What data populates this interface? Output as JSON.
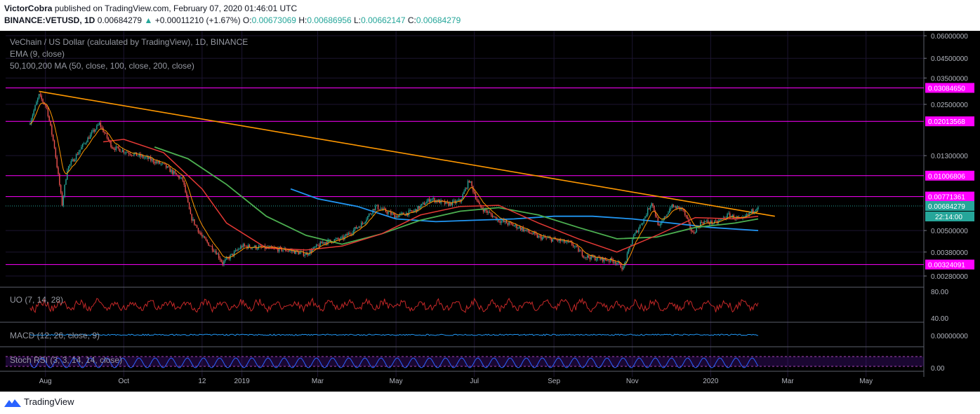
{
  "header": {
    "publisher": "VictorCobra",
    "published_text": "published on TradingView.com, February 07, 2020 01:46:01 UTC",
    "symbol": "BINANCE:VETUSD, 1D",
    "last": "0.00684279",
    "change": "+0.00011210 (+1.67%)",
    "o_label": "O:",
    "o": "0.00673069",
    "h_label": "H:",
    "h": "0.00686956",
    "l_label": "L:",
    "l": "0.00662147",
    "c_label": "C:",
    "c": "0.00684279"
  },
  "legend": {
    "title": "VeChain / US Dollar (calculated by TradingView), 1D, BINANCE",
    "ema": "EMA (9, close)",
    "ma": "50,100,200 MA (50, close, 100, close, 200, close)"
  },
  "panes": {
    "uo": "UO (7, 14, 28)",
    "macd": "MACD (12, 26, close, 9)",
    "stoch": "Stoch RSI (3, 3, 14, 14, close)"
  },
  "footer": {
    "brand": "TradingView",
    "logo_icon": "tradingview-logo-icon"
  },
  "colors": {
    "up": "#26a69a",
    "down": "#ef5350",
    "level": "#ff00ff",
    "trendline": "#ff9800",
    "ema": "#ff9800",
    "ma50": "#e53935",
    "ma100": "#4caf50",
    "ma200": "#2196f3"
  },
  "chart_data": {
    "type": "candlestick",
    "scale": "log",
    "y_ticks": [
      "0.06000000",
      "0.04500000",
      "0.03500000",
      "0.02500000",
      "0.01300000",
      "0.00500000",
      "0.00380000",
      "0.00280000"
    ],
    "y_tick_values": [
      0.06,
      0.045,
      0.035,
      0.025,
      0.013,
      0.005,
      0.0038,
      0.0028
    ],
    "x_ticks": [
      "Aug",
      "Oct",
      "12",
      "2019",
      "Mar",
      "May",
      "Jul",
      "Sep",
      "Nov",
      "2020",
      "Mar",
      "May"
    ],
    "levels": [
      {
        "label": "0.03084650",
        "value": 0.0308465
      },
      {
        "label": "0.02013568",
        "value": 0.02013568
      },
      {
        "label": "0.01006806",
        "value": 0.01006806
      },
      {
        "label": "0.00771361",
        "value": 0.00771361
      },
      {
        "label": "0.00324091",
        "value": 0.00324091
      }
    ],
    "last_price": {
      "label": "0.00684279",
      "value": 0.00684279
    },
    "countdown": "22:14:00",
    "trendline": {
      "from": {
        "date": "2018-07-27",
        "price": 0.0295
      },
      "to": {
        "date": "2020-02-20",
        "price": 0.006
      }
    },
    "price_path": [
      [
        "2018-07-20",
        0.02
      ],
      [
        "2018-07-27",
        0.028
      ],
      [
        "2018-08-02",
        0.024
      ],
      [
        "2018-08-08",
        0.0145
      ],
      [
        "2018-08-14",
        0.007
      ],
      [
        "2018-08-18",
        0.011
      ],
      [
        "2018-09-01",
        0.0155
      ],
      [
        "2018-09-12",
        0.0195
      ],
      [
        "2018-09-22",
        0.0145
      ],
      [
        "2018-10-05",
        0.0135
      ],
      [
        "2018-10-20",
        0.0125
      ],
      [
        "2018-11-01",
        0.0115
      ],
      [
        "2018-11-16",
        0.0095
      ],
      [
        "2018-11-22",
        0.006
      ],
      [
        "2018-12-01",
        0.0046
      ],
      [
        "2018-12-12",
        0.0038
      ],
      [
        "2018-12-17",
        0.0033
      ],
      [
        "2019-01-01",
        0.0041
      ],
      [
        "2019-01-20",
        0.004
      ],
      [
        "2019-02-05",
        0.0039
      ],
      [
        "2019-02-20",
        0.0037
      ],
      [
        "2019-03-05",
        0.0043
      ],
      [
        "2019-03-20",
        0.0045
      ],
      [
        "2019-04-05",
        0.0055
      ],
      [
        "2019-04-15",
        0.0068
      ],
      [
        "2019-05-01",
        0.006
      ],
      [
        "2019-05-15",
        0.0064
      ],
      [
        "2019-05-28",
        0.0075
      ],
      [
        "2019-06-10",
        0.007
      ],
      [
        "2019-06-20",
        0.0073
      ],
      [
        "2019-06-27",
        0.0095
      ],
      [
        "2019-07-05",
        0.0068
      ],
      [
        "2019-07-20",
        0.0057
      ],
      [
        "2019-08-05",
        0.0052
      ],
      [
        "2019-08-20",
        0.0046
      ],
      [
        "2019-09-05",
        0.0044
      ],
      [
        "2019-09-15",
        0.0042
      ],
      [
        "2019-09-25",
        0.0036
      ],
      [
        "2019-10-05",
        0.0035
      ],
      [
        "2019-10-18",
        0.0034
      ],
      [
        "2019-10-25",
        0.0031
      ],
      [
        "2019-11-01",
        0.0045
      ],
      [
        "2019-11-10",
        0.0058
      ],
      [
        "2019-11-16",
        0.0072
      ],
      [
        "2019-11-22",
        0.0052
      ],
      [
        "2019-12-01",
        0.0068
      ],
      [
        "2019-12-10",
        0.0066
      ],
      [
        "2019-12-18",
        0.0048
      ],
      [
        "2019-12-25",
        0.0056
      ],
      [
        "2020-01-05",
        0.0055
      ],
      [
        "2020-01-15",
        0.0061
      ],
      [
        "2020-01-25",
        0.0057
      ],
      [
        "2020-02-07",
        0.00684
      ]
    ],
    "ma200": [
      [
        "2019-02-08",
        0.0085
      ],
      [
        "2019-03-01",
        0.0075
      ],
      [
        "2019-04-01",
        0.0068
      ],
      [
        "2019-05-01",
        0.0058
      ],
      [
        "2019-06-01",
        0.0056
      ],
      [
        "2019-07-01",
        0.0057
      ],
      [
        "2019-08-01",
        0.0058
      ],
      [
        "2019-09-01",
        0.006
      ],
      [
        "2019-10-01",
        0.006
      ],
      [
        "2019-11-01",
        0.0058
      ],
      [
        "2019-12-01",
        0.0055
      ],
      [
        "2020-01-01",
        0.0052
      ],
      [
        "2020-02-07",
        0.005
      ]
    ],
    "ma100": [
      [
        "2018-10-25",
        0.0145
      ],
      [
        "2018-11-20",
        0.0125
      ],
      [
        "2018-12-20",
        0.009
      ],
      [
        "2019-01-20",
        0.006
      ],
      [
        "2019-02-20",
        0.0047
      ],
      [
        "2019-03-20",
        0.0042
      ],
      [
        "2019-04-20",
        0.0048
      ],
      [
        "2019-05-20",
        0.0057
      ],
      [
        "2019-06-20",
        0.0064
      ],
      [
        "2019-07-20",
        0.0067
      ],
      [
        "2019-08-20",
        0.0061
      ],
      [
        "2019-09-20",
        0.0052
      ],
      [
        "2019-10-20",
        0.0045
      ],
      [
        "2019-11-20",
        0.0046
      ],
      [
        "2019-12-20",
        0.0052
      ],
      [
        "2020-01-20",
        0.0055
      ],
      [
        "2020-02-07",
        0.0058
      ]
    ],
    "ma50": [
      [
        "2018-09-15",
        0.0155
      ],
      [
        "2018-10-01",
        0.016
      ],
      [
        "2018-11-01",
        0.0135
      ],
      [
        "2018-12-01",
        0.0085
      ],
      [
        "2018-12-20",
        0.0055
      ],
      [
        "2019-01-20",
        0.004
      ],
      [
        "2019-02-20",
        0.0039
      ],
      [
        "2019-03-20",
        0.0041
      ],
      [
        "2019-04-20",
        0.0048
      ],
      [
        "2019-05-20",
        0.0061
      ],
      [
        "2019-06-20",
        0.0068
      ],
      [
        "2019-07-20",
        0.0069
      ],
      [
        "2019-08-20",
        0.0055
      ],
      [
        "2019-09-20",
        0.0045
      ],
      [
        "2019-10-20",
        0.0038
      ],
      [
        "2019-11-20",
        0.0047
      ],
      [
        "2019-12-20",
        0.0059
      ],
      [
        "2020-01-20",
        0.0058
      ],
      [
        "2020-02-07",
        0.006
      ]
    ],
    "indicator_ticks": {
      "uo": [
        "80.00",
        "40.00"
      ],
      "macd": [
        "0.00000000"
      ],
      "stoch": [
        "0.00"
      ]
    }
  }
}
